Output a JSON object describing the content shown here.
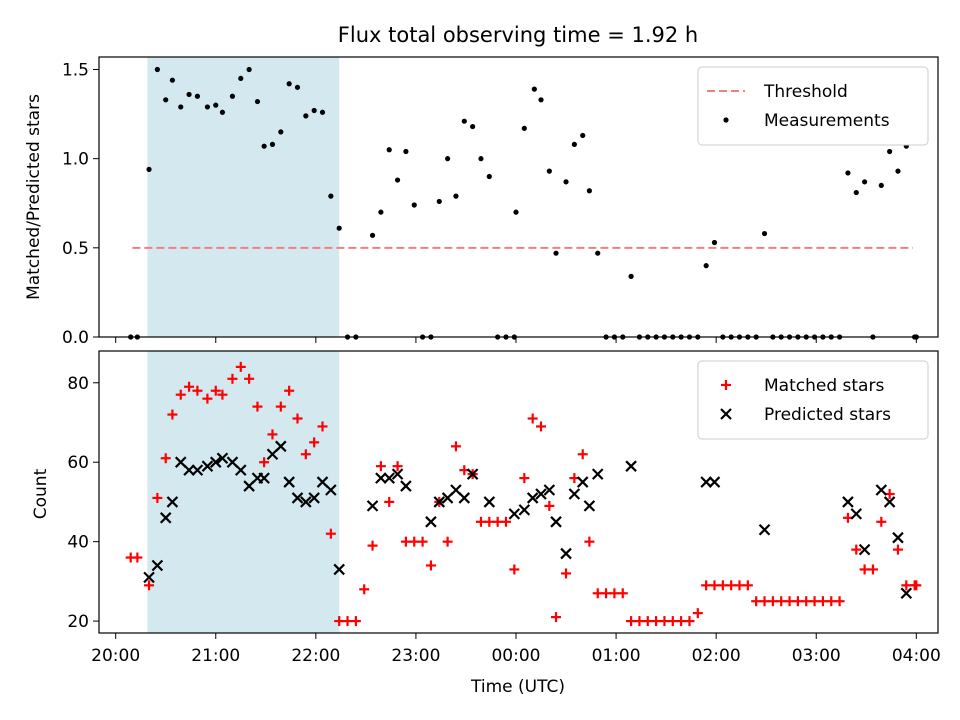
{
  "chart_data": [
    {
      "type": "scatter",
      "title": "Flux total observing time = 1.92 h",
      "xlabel": "",
      "ylabel": "Matched/Predicted stars",
      "xlim": [
        "20:00",
        "04:00"
      ],
      "ylim": [
        0,
        1.57
      ],
      "yticks": [
        "0.0",
        "0.5",
        "1.0",
        "1.5"
      ],
      "xticks": [],
      "legend_position": "top-right",
      "shaded_region": {
        "x_start": "20:19",
        "x_end": "22:14",
        "color": "#d3e9ef"
      },
      "threshold": {
        "name": "Threshold",
        "value": 0.5,
        "x_start": "20:10",
        "x_end": "03:58",
        "color": "#f08080"
      },
      "series": [
        {
          "name": "Measurements",
          "marker": "dot",
          "color": "#000000",
          "points": [
            [
              "20:09",
              0
            ],
            [
              "20:13",
              0
            ],
            [
              "20:20",
              0.94
            ],
            [
              "20:25",
              1.5
            ],
            [
              "20:30",
              1.33
            ],
            [
              "20:34",
              1.44
            ],
            [
              "20:39",
              1.29
            ],
            [
              "20:44",
              1.36
            ],
            [
              "20:49",
              1.35
            ],
            [
              "20:55",
              1.29
            ],
            [
              "21:00",
              1.3
            ],
            [
              "21:04",
              1.26
            ],
            [
              "21:10",
              1.35
            ],
            [
              "21:15",
              1.45
            ],
            [
              "21:20",
              1.5
            ],
            [
              "21:25",
              1.32
            ],
            [
              "21:29",
              1.07
            ],
            [
              "21:34",
              1.08
            ],
            [
              "21:39",
              1.15
            ],
            [
              "21:44",
              1.42
            ],
            [
              "21:49",
              1.4
            ],
            [
              "21:54",
              1.24
            ],
            [
              "21:59",
              1.27
            ],
            [
              "22:04",
              1.26
            ],
            [
              "22:09",
              0.79
            ],
            [
              "22:14",
              0.61
            ],
            [
              "22:19",
              0
            ],
            [
              "22:24",
              0
            ],
            [
              "22:34",
              0.57
            ],
            [
              "22:39",
              0.7
            ],
            [
              "22:44",
              1.05
            ],
            [
              "22:49",
              0.88
            ],
            [
              "22:54",
              1.04
            ],
            [
              "22:59",
              0.74
            ],
            [
              "23:04",
              0
            ],
            [
              "23:09",
              0
            ],
            [
              "23:14",
              0.76
            ],
            [
              "23:19",
              1.0
            ],
            [
              "23:24",
              0.79
            ],
            [
              "23:29",
              1.21
            ],
            [
              "23:34",
              1.18
            ],
            [
              "23:39",
              1.0
            ],
            [
              "23:44",
              0.9
            ],
            [
              "23:49",
              0
            ],
            [
              "23:54",
              0
            ],
            [
              "23:59",
              0
            ],
            [
              "00:00",
              0.7
            ],
            [
              "00:05",
              1.17
            ],
            [
              "00:11",
              1.39
            ],
            [
              "00:15",
              1.33
            ],
            [
              "00:20",
              0.93
            ],
            [
              "00:24",
              0.47
            ],
            [
              "00:30",
              0.87
            ],
            [
              "00:35",
              1.08
            ],
            [
              "00:40",
              1.13
            ],
            [
              "00:44",
              0.82
            ],
            [
              "00:49",
              0.47
            ],
            [
              "00:54",
              0
            ],
            [
              "00:59",
              0
            ],
            [
              "01:04",
              0
            ],
            [
              "01:09",
              0.34
            ],
            [
              "01:14",
              0
            ],
            [
              "01:19",
              0
            ],
            [
              "01:24",
              0
            ],
            [
              "01:29",
              0
            ],
            [
              "01:34",
              0
            ],
            [
              "01:39",
              0
            ],
            [
              "01:44",
              0
            ],
            [
              "01:49",
              0
            ],
            [
              "01:54",
              0.4
            ],
            [
              "01:59",
              0.53
            ],
            [
              "02:04",
              0
            ],
            [
              "02:09",
              0
            ],
            [
              "02:14",
              0
            ],
            [
              "02:19",
              0
            ],
            [
              "02:24",
              0
            ],
            [
              "02:29",
              0.58
            ],
            [
              "02:34",
              0
            ],
            [
              "02:39",
              0
            ],
            [
              "02:44",
              0
            ],
            [
              "02:49",
              0
            ],
            [
              "02:54",
              0
            ],
            [
              "02:59",
              0
            ],
            [
              "03:04",
              0
            ],
            [
              "03:09",
              0
            ],
            [
              "03:14",
              0
            ],
            [
              "03:19",
              0.92
            ],
            [
              "03:24",
              0.81
            ],
            [
              "03:29",
              0.87
            ],
            [
              "03:34",
              0
            ],
            [
              "03:39",
              0.85
            ],
            [
              "03:44",
              1.04
            ],
            [
              "03:49",
              0.93
            ],
            [
              "03:54",
              1.07
            ],
            [
              "03:59",
              0
            ],
            [
              "04:00",
              0
            ]
          ]
        }
      ]
    },
    {
      "type": "scatter",
      "title": "",
      "xlabel": "Time (UTC)",
      "ylabel": "Count",
      "xlim": [
        "20:00",
        "04:00"
      ],
      "ylim": [
        17,
        88
      ],
      "yticks": [
        "20",
        "40",
        "60",
        "80"
      ],
      "xticks": [
        "20:00",
        "21:00",
        "22:00",
        "23:00",
        "00:00",
        "01:00",
        "02:00",
        "03:00",
        "04:00"
      ],
      "legend_position": "top-right",
      "shaded_region": {
        "x_start": "20:19",
        "x_end": "22:14",
        "color": "#d3e9ef"
      },
      "series": [
        {
          "name": "Matched stars",
          "marker": "plus",
          "color": "#ff0000",
          "points": [
            [
              "20:09",
              36
            ],
            [
              "20:13",
              36
            ],
            [
              "20:20",
              29
            ],
            [
              "20:25",
              51
            ],
            [
              "20:30",
              61
            ],
            [
              "20:34",
              72
            ],
            [
              "20:39",
              77
            ],
            [
              "20:44",
              79
            ],
            [
              "20:49",
              78
            ],
            [
              "20:55",
              76
            ],
            [
              "21:00",
              78
            ],
            [
              "21:04",
              77
            ],
            [
              "21:10",
              81
            ],
            [
              "21:15",
              84
            ],
            [
              "21:20",
              81
            ],
            [
              "21:25",
              74
            ],
            [
              "21:29",
              60
            ],
            [
              "21:34",
              67
            ],
            [
              "21:39",
              74
            ],
            [
              "21:44",
              78
            ],
            [
              "21:49",
              71
            ],
            [
              "21:54",
              62
            ],
            [
              "21:59",
              65
            ],
            [
              "22:04",
              69
            ],
            [
              "22:09",
              42
            ],
            [
              "22:14",
              20
            ],
            [
              "22:19",
              20
            ],
            [
              "22:24",
              20
            ],
            [
              "22:29",
              28
            ],
            [
              "22:34",
              39
            ],
            [
              "22:39",
              59
            ],
            [
              "22:44",
              50
            ],
            [
              "22:49",
              59
            ],
            [
              "22:54",
              40
            ],
            [
              "22:59",
              40
            ],
            [
              "23:04",
              40
            ],
            [
              "23:09",
              34
            ],
            [
              "23:14",
              50
            ],
            [
              "23:19",
              40
            ],
            [
              "23:24",
              64
            ],
            [
              "23:29",
              58
            ],
            [
              "23:34",
              57
            ],
            [
              "23:39",
              45
            ],
            [
              "23:44",
              45
            ],
            [
              "23:49",
              45
            ],
            [
              "23:54",
              45
            ],
            [
              "23:59",
              33
            ],
            [
              "00:05",
              56
            ],
            [
              "00:10",
              71
            ],
            [
              "00:15",
              69
            ],
            [
              "00:20",
              49
            ],
            [
              "00:24",
              21
            ],
            [
              "00:30",
              32
            ],
            [
              "00:35",
              56
            ],
            [
              "00:40",
              62
            ],
            [
              "00:44",
              40
            ],
            [
              "00:49",
              27
            ],
            [
              "00:54",
              27
            ],
            [
              "00:59",
              27
            ],
            [
              "01:04",
              27
            ],
            [
              "01:09",
              20
            ],
            [
              "01:14",
              20
            ],
            [
              "01:19",
              20
            ],
            [
              "01:24",
              20
            ],
            [
              "01:29",
              20
            ],
            [
              "01:34",
              20
            ],
            [
              "01:39",
              20
            ],
            [
              "01:44",
              20
            ],
            [
              "01:49",
              22
            ],
            [
              "01:54",
              29
            ],
            [
              "01:59",
              29
            ],
            [
              "02:04",
              29
            ],
            [
              "02:09",
              29
            ],
            [
              "02:14",
              29
            ],
            [
              "02:19",
              29
            ],
            [
              "02:24",
              25
            ],
            [
              "02:29",
              25
            ],
            [
              "02:34",
              25
            ],
            [
              "02:39",
              25
            ],
            [
              "02:44",
              25
            ],
            [
              "02:49",
              25
            ],
            [
              "02:54",
              25
            ],
            [
              "02:59",
              25
            ],
            [
              "03:04",
              25
            ],
            [
              "03:09",
              25
            ],
            [
              "03:14",
              25
            ],
            [
              "03:19",
              46
            ],
            [
              "03:24",
              38
            ],
            [
              "03:29",
              33
            ],
            [
              "03:34",
              33
            ],
            [
              "03:39",
              45
            ],
            [
              "03:44",
              52
            ],
            [
              "03:49",
              38
            ],
            [
              "03:54",
              29
            ],
            [
              "03:59",
              29
            ],
            [
              "04:00",
              29
            ]
          ]
        },
        {
          "name": "Predicted stars",
          "marker": "x",
          "color": "#000000",
          "points": [
            [
              "20:20",
              31
            ],
            [
              "20:25",
              34
            ],
            [
              "20:30",
              46
            ],
            [
              "20:34",
              50
            ],
            [
              "20:39",
              60
            ],
            [
              "20:44",
              58
            ],
            [
              "20:49",
              58
            ],
            [
              "20:55",
              59
            ],
            [
              "21:00",
              60
            ],
            [
              "21:04",
              61
            ],
            [
              "21:10",
              60
            ],
            [
              "21:15",
              58
            ],
            [
              "21:20",
              54
            ],
            [
              "21:25",
              56
            ],
            [
              "21:29",
              56
            ],
            [
              "21:34",
              62
            ],
            [
              "21:39",
              64
            ],
            [
              "21:44",
              55
            ],
            [
              "21:49",
              51
            ],
            [
              "21:54",
              50
            ],
            [
              "21:59",
              51
            ],
            [
              "22:04",
              55
            ],
            [
              "22:09",
              53
            ],
            [
              "22:14",
              33
            ],
            [
              "22:34",
              49
            ],
            [
              "22:39",
              56
            ],
            [
              "22:44",
              56
            ],
            [
              "22:49",
              57
            ],
            [
              "22:54",
              54
            ],
            [
              "23:09",
              45
            ],
            [
              "23:14",
              50
            ],
            [
              "23:19",
              51
            ],
            [
              "23:24",
              53
            ],
            [
              "23:29",
              51
            ],
            [
              "23:34",
              57
            ],
            [
              "23:44",
              50
            ],
            [
              "23:59",
              47
            ],
            [
              "00:05",
              48
            ],
            [
              "00:10",
              51
            ],
            [
              "00:15",
              52
            ],
            [
              "00:20",
              53
            ],
            [
              "00:24",
              45
            ],
            [
              "00:30",
              37
            ],
            [
              "00:35",
              52
            ],
            [
              "00:40",
              55
            ],
            [
              "00:44",
              49
            ],
            [
              "00:49",
              57
            ],
            [
              "01:09",
              59
            ],
            [
              "01:54",
              55
            ],
            [
              "01:59",
              55
            ],
            [
              "02:29",
              43
            ],
            [
              "03:19",
              50
            ],
            [
              "03:24",
              47
            ],
            [
              "03:29",
              38
            ],
            [
              "03:39",
              53
            ],
            [
              "03:44",
              50
            ],
            [
              "03:49",
              41
            ],
            [
              "03:54",
              27
            ]
          ]
        }
      ]
    }
  ]
}
